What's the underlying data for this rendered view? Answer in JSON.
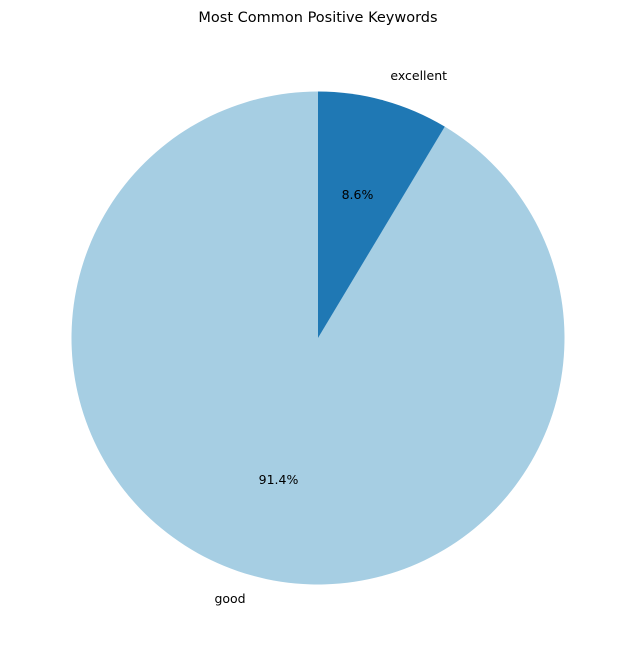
{
  "chart_data": {
    "type": "pie",
    "title": "Most Common Positive Keywords",
    "categories": [
      "good",
      "excellent"
    ],
    "values": [
      91.4,
      8.6
    ],
    "percent_labels": [
      "91.4%",
      "8.6%"
    ],
    "colors": [
      "#a6cee3",
      "#1f78b4"
    ],
    "start_angle_deg": 90,
    "direction": "counterclockwise",
    "legend": "none"
  }
}
